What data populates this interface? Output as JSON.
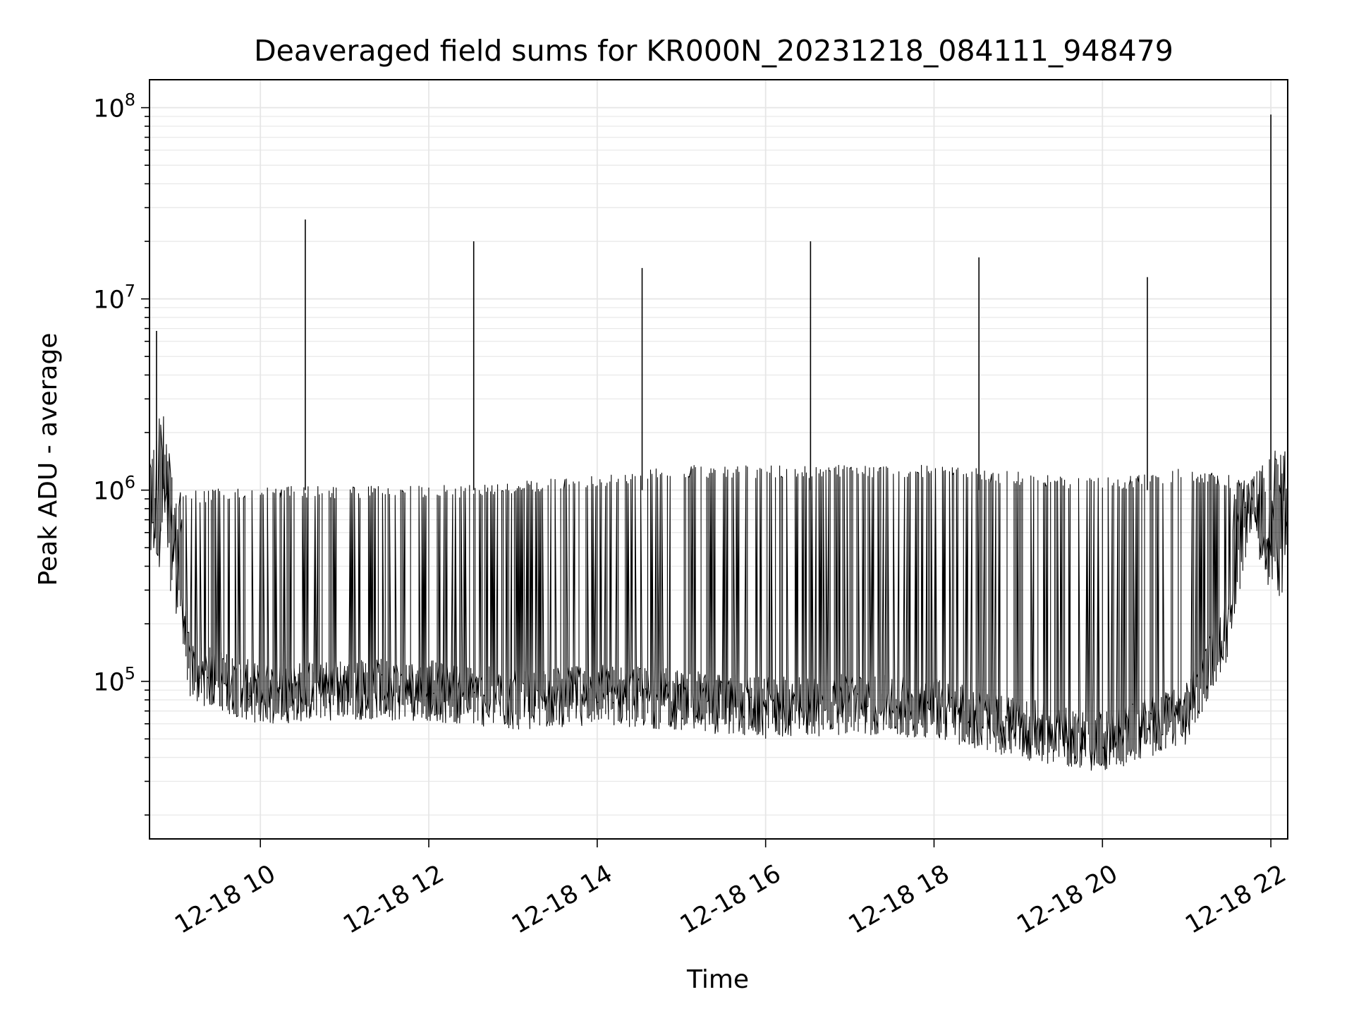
{
  "chart_data": {
    "type": "line",
    "title": "Deaveraged field sums for KR000N_20231218_084111_948479",
    "xlabel": "Time",
    "ylabel": "Peak ADU - average",
    "yscale": "log",
    "ylim": [
      15000,
      140000000
    ],
    "xlim": [
      "2023-12-18 08:41",
      "2023-12-18 22:12"
    ],
    "grid": true,
    "line_color": "#000000",
    "x_ticks": [
      "12-18 10",
      "12-18 12",
      "12-18 14",
      "12-18 16",
      "12-18 18",
      "12-18 20",
      "12-18 22"
    ],
    "x_tick_values": [
      "2023-12-18 10:00",
      "2023-12-18 12:00",
      "2023-12-18 14:00",
      "2023-12-18 16:00",
      "2023-12-18 18:00",
      "2023-12-18 20:00",
      "2023-12-18 22:00"
    ],
    "y_ticks": [
      {
        "value": 100000,
        "base": "10",
        "exp": "5"
      },
      {
        "value": 1000000,
        "base": "10",
        "exp": "6"
      },
      {
        "value": 10000000,
        "base": "10",
        "exp": "7"
      },
      {
        "value": 100000000,
        "base": "10",
        "exp": "8"
      }
    ],
    "spikes": [
      {
        "x": "2023-12-18 08:46",
        "y": 6800000
      },
      {
        "x": "2023-12-18 10:32",
        "y": 26000000
      },
      {
        "x": "2023-12-18 12:32",
        "y": 20000000
      },
      {
        "x": "2023-12-18 14:32",
        "y": 14500000
      },
      {
        "x": "2023-12-18 16:32",
        "y": 20000000
      },
      {
        "x": "2023-12-18 18:32",
        "y": 16500000
      },
      {
        "x": "2023-12-18 20:32",
        "y": 13000000
      },
      {
        "x": "2023-12-18 22:00",
        "y": 92000000
      }
    ],
    "series": [
      {
        "envelope": [
          {
            "x": "2023-12-18 08:41",
            "low": 350000,
            "high": 1600000
          },
          {
            "x": "2023-12-18 08:50",
            "low": 400000,
            "high": 3000000
          },
          {
            "x": "2023-12-18 09:00",
            "low": 250000,
            "high": 1000000
          },
          {
            "x": "2023-12-18 09:10",
            "low": 60000,
            "high": 1000000
          },
          {
            "x": "2023-12-18 10:00",
            "low": 45000,
            "high": 1050000
          },
          {
            "x": "2023-12-18 11:00",
            "low": 48000,
            "high": 1050000
          },
          {
            "x": "2023-12-18 12:00",
            "low": 47000,
            "high": 1050000
          },
          {
            "x": "2023-12-18 13:00",
            "low": 42000,
            "high": 1100000
          },
          {
            "x": "2023-12-18 14:00",
            "low": 45000,
            "high": 1200000
          },
          {
            "x": "2023-12-18 15:00",
            "low": 42000,
            "high": 1350000
          },
          {
            "x": "2023-12-18 16:00",
            "low": 38000,
            "high": 1350000
          },
          {
            "x": "2023-12-18 17:00",
            "low": 40000,
            "high": 1350000
          },
          {
            "x": "2023-12-18 18:00",
            "low": 38000,
            "high": 1350000
          },
          {
            "x": "2023-12-18 19:00",
            "low": 30000,
            "high": 1250000
          },
          {
            "x": "2023-12-18 20:00",
            "low": 25000,
            "high": 1150000
          },
          {
            "x": "2023-12-18 21:00",
            "low": 35000,
            "high": 1300000
          },
          {
            "x": "2023-12-18 21:30",
            "low": 100000,
            "high": 1200000
          },
          {
            "x": "2023-12-18 21:45",
            "low": 600000,
            "high": 1100000
          },
          {
            "x": "2023-12-18 22:00",
            "low": 300000,
            "high": 1600000
          },
          {
            "x": "2023-12-18 22:12",
            "low": 250000,
            "high": 1700000
          }
        ]
      }
    ]
  }
}
